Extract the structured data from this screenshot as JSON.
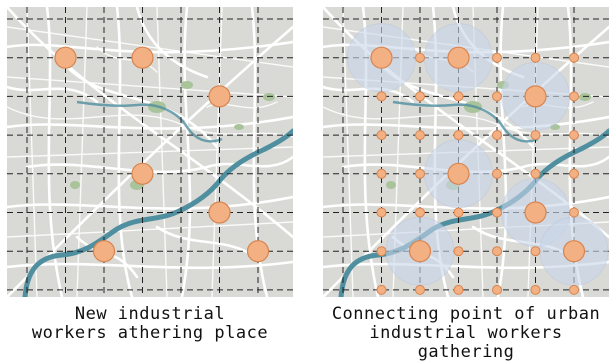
{
  "panels": [
    {
      "id": "left",
      "caption_line1": "New industrial",
      "caption_line2": "workers athering place",
      "gathering_points": [
        [
          1,
          1
        ],
        [
          3,
          1
        ],
        [
          5,
          2
        ],
        [
          3,
          4
        ],
        [
          5,
          5
        ],
        [
          2,
          6
        ],
        [
          6,
          6
        ]
      ],
      "show_small_grid_points": false
    },
    {
      "id": "right",
      "caption_line1": "Connecting point of urban",
      "caption_line2": "industrial workers gathering",
      "gathering_points": [
        [
          1,
          1
        ],
        [
          3,
          1
        ],
        [
          5,
          2
        ],
        [
          3,
          4
        ],
        [
          5,
          5
        ],
        [
          2,
          6
        ],
        [
          6,
          6
        ]
      ],
      "show_small_grid_points": true
    }
  ],
  "colors": {
    "map_background": "#d9d9d6",
    "roads": "#ffffff",
    "river": "#4f8fa0",
    "parks": "#a9c39a",
    "grid_lines": "#222222",
    "marker_fill": "#f2b083",
    "marker_stroke": "#d8844e",
    "catchment_fill": "#c9d6ea"
  },
  "icons": {
    "gathering_point": "large-circle-marker",
    "connection_point": "small-circle-marker",
    "catchment": "translucent-buffer-circle"
  }
}
